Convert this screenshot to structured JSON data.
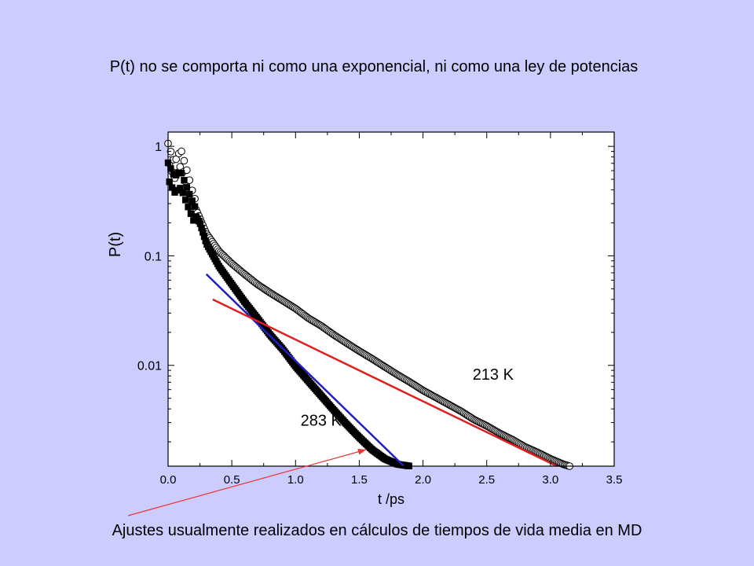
{
  "slide": {
    "title": "P(t) no se comporta ni como una exponencial, ni como una ley de potencias",
    "caption": "Ajustes usualmente realizados en cálculos de tiempos de vida media en MD"
  },
  "chart_data": {
    "type": "scatter",
    "xlabel": "t /ps",
    "ylabel": "P(t)",
    "xlim": [
      0,
      3.5
    ],
    "ylim": [
      0.0012,
      1.35
    ],
    "yscale": "log",
    "xticks": [
      0,
      0.5,
      1.0,
      1.5,
      2.0,
      2.5,
      3.0,
      3.5
    ],
    "xtick_labels": [
      "0.0",
      "0.5",
      "1.0",
      "1.5",
      "2.0",
      "2.5",
      "3.0",
      "3.5"
    ],
    "yticks": [
      1,
      0.1,
      0.01
    ],
    "ytick_labels": [
      "1",
      "0.1",
      "0.01"
    ],
    "grid": false,
    "series": [
      {
        "name": "213 K",
        "marker": "circle-open",
        "x": [
          0.0,
          0.05,
          0.1,
          0.15,
          0.2,
          0.3,
          0.4,
          0.5,
          0.6,
          0.7,
          0.8,
          0.9,
          1.0,
          1.1,
          1.2,
          1.3,
          1.4,
          1.5,
          1.6,
          1.7,
          1.8,
          1.9,
          2.0,
          2.1,
          2.2,
          2.3,
          2.4,
          2.5,
          2.6,
          2.7,
          2.8,
          2.9,
          3.0,
          3.1,
          3.15
        ],
        "y": [
          0.9,
          0.6,
          0.8,
          0.5,
          0.3,
          0.16,
          0.11,
          0.085,
          0.068,
          0.055,
          0.046,
          0.039,
          0.033,
          0.027,
          0.023,
          0.019,
          0.016,
          0.0135,
          0.0115,
          0.0097,
          0.0082,
          0.007,
          0.0059,
          0.0051,
          0.0044,
          0.0038,
          0.0032,
          0.0028,
          0.0024,
          0.0021,
          0.0018,
          0.0016,
          0.0014,
          0.00125,
          0.0012
        ]
      },
      {
        "name": "283 K",
        "marker": "square-filled",
        "x": [
          0.0,
          0.05,
          0.1,
          0.15,
          0.2,
          0.25,
          0.3,
          0.4,
          0.5,
          0.6,
          0.7,
          0.8,
          0.9,
          1.0,
          1.1,
          1.2,
          1.3,
          1.4,
          1.5,
          1.6,
          1.7,
          1.8,
          1.9
        ],
        "y": [
          0.6,
          0.45,
          0.5,
          0.35,
          0.25,
          0.2,
          0.13,
          0.08,
          0.055,
          0.038,
          0.027,
          0.019,
          0.014,
          0.0098,
          0.0072,
          0.0053,
          0.0039,
          0.0029,
          0.0022,
          0.0017,
          0.0014,
          0.00125,
          0.0012
        ]
      }
    ],
    "fits": [
      {
        "color": "#2020c0",
        "x": [
          0.3,
          1.85
        ],
        "y": [
          0.068,
          0.0012
        ]
      },
      {
        "color": "#e02020",
        "x": [
          0.35,
          3.05
        ],
        "y": [
          0.04,
          0.0012
        ]
      }
    ],
    "annotations": [
      {
        "text": "213 K",
        "x": 2.55,
        "y": 0.0074
      },
      {
        "text": "283 K",
        "x": 1.2,
        "y": 0.0028
      }
    ],
    "arrow_color": "#ee3333"
  }
}
